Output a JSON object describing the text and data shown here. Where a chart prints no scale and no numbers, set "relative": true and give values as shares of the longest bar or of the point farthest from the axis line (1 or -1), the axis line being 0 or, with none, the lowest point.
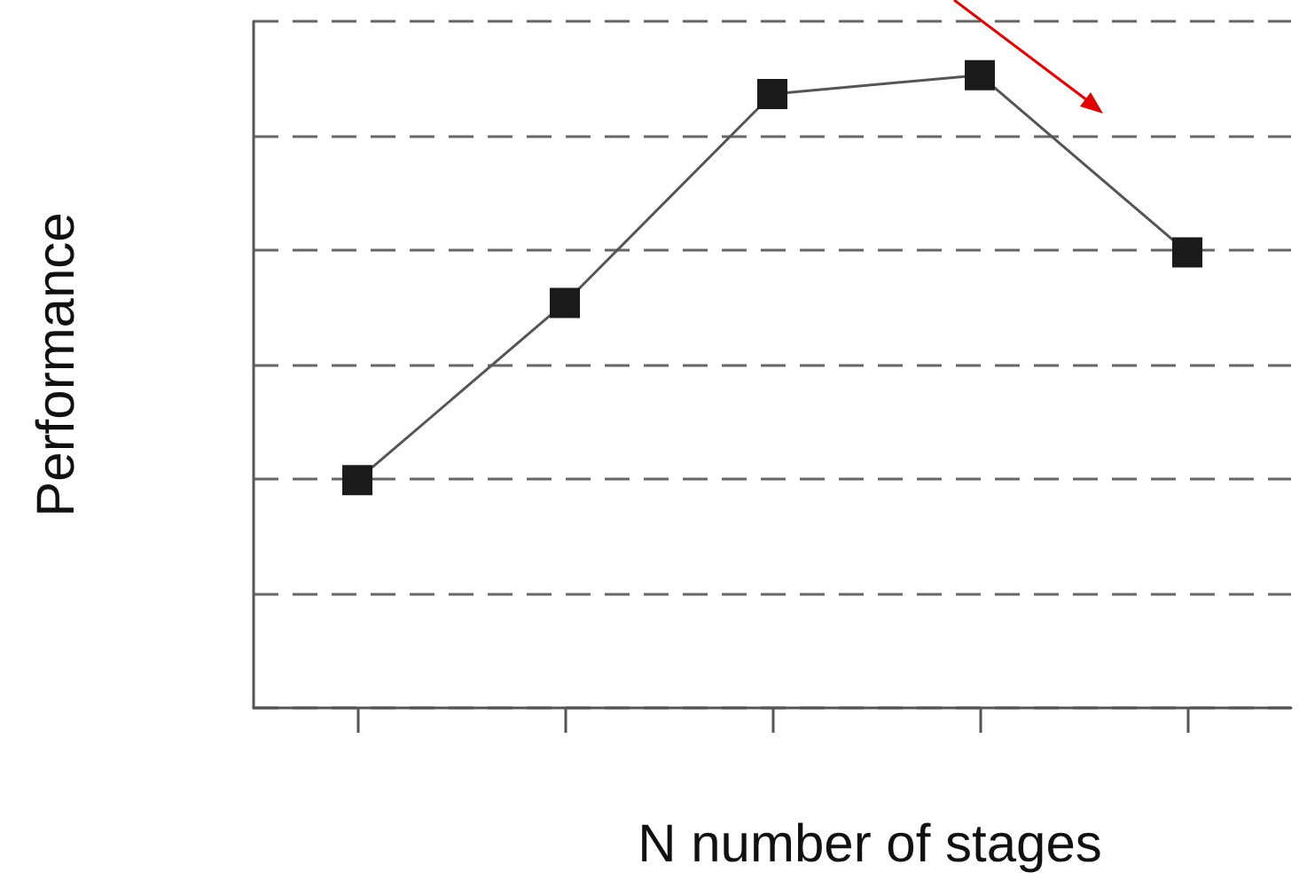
{
  "chart_data": {
    "type": "line",
    "relative": true,
    "xlabel": "N number of stages",
    "ylabel": "Performance",
    "categories": [
      null,
      null,
      null,
      null,
      null
    ],
    "series": [
      {
        "color": "#555555",
        "values": [
          0.36,
          0.64,
          0.97,
          1,
          0.72
        ]
      }
    ],
    "marker": "square",
    "line_style": "solid",
    "grid": "y"
  }
}
